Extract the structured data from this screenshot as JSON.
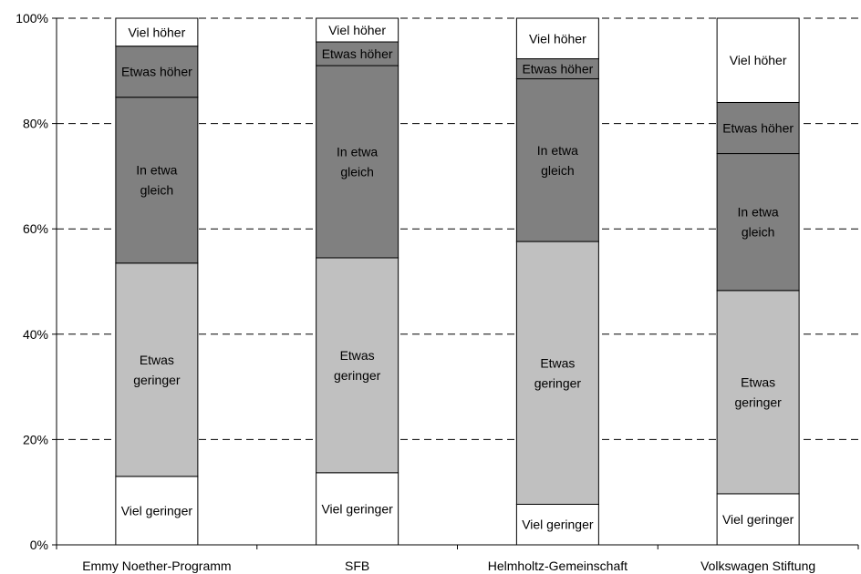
{
  "chart_data": {
    "type": "bar",
    "stacked": true,
    "percent": true,
    "categories": [
      "Emmy Noether-Programm",
      "SFB",
      "Helmholtz-Gemeinschaft",
      "Volkswagen Stiftung"
    ],
    "series": [
      {
        "name": "Viel geringer",
        "values": [
          13,
          13.7,
          7.7,
          9.7
        ],
        "color": "#ffffff",
        "labels": [
          "Viel geringer",
          "Viel geringer",
          "Viel geringer",
          "Viel geringer"
        ]
      },
      {
        "name": "Etwas geringer",
        "values": [
          40.5,
          40.8,
          49.9,
          38.6
        ],
        "color": "#c0c0c0",
        "labels": [
          "Etwas\ngeringer",
          "Etwas\ngeringer",
          "Etwas\ngeringer",
          "Etwas\ngeringer"
        ]
      },
      {
        "name": "In etwa gleich",
        "values": [
          31.5,
          36.5,
          30.9,
          26
        ],
        "color": "#808080",
        "labels": [
          "In etwa\ngleich",
          "In etwa\ngleich",
          "In etwa\ngleich",
          "In etwa\ngleich"
        ]
      },
      {
        "name": "Etwas höher",
        "values": [
          9.7,
          4.5,
          3.8,
          9.7
        ],
        "color": "#808080",
        "labels": [
          "Etwas höher",
          "Etwas höher",
          "Etwas höher",
          "Etwas höher"
        ]
      },
      {
        "name": "Viel höher",
        "values": [
          5.3,
          4.5,
          7.7,
          16
        ],
        "color": "#ffffff",
        "labels": [
          "Viel höher",
          "Viel höher",
          "Viel höher",
          "Viel höher"
        ]
      }
    ],
    "ylim": [
      0,
      100
    ],
    "yticks": [
      "0%",
      "20%",
      "40%",
      "60%",
      "80%",
      "100%"
    ],
    "ytick_values": [
      0,
      20,
      40,
      60,
      80,
      100
    ],
    "grid": true,
    "legend": "none"
  }
}
